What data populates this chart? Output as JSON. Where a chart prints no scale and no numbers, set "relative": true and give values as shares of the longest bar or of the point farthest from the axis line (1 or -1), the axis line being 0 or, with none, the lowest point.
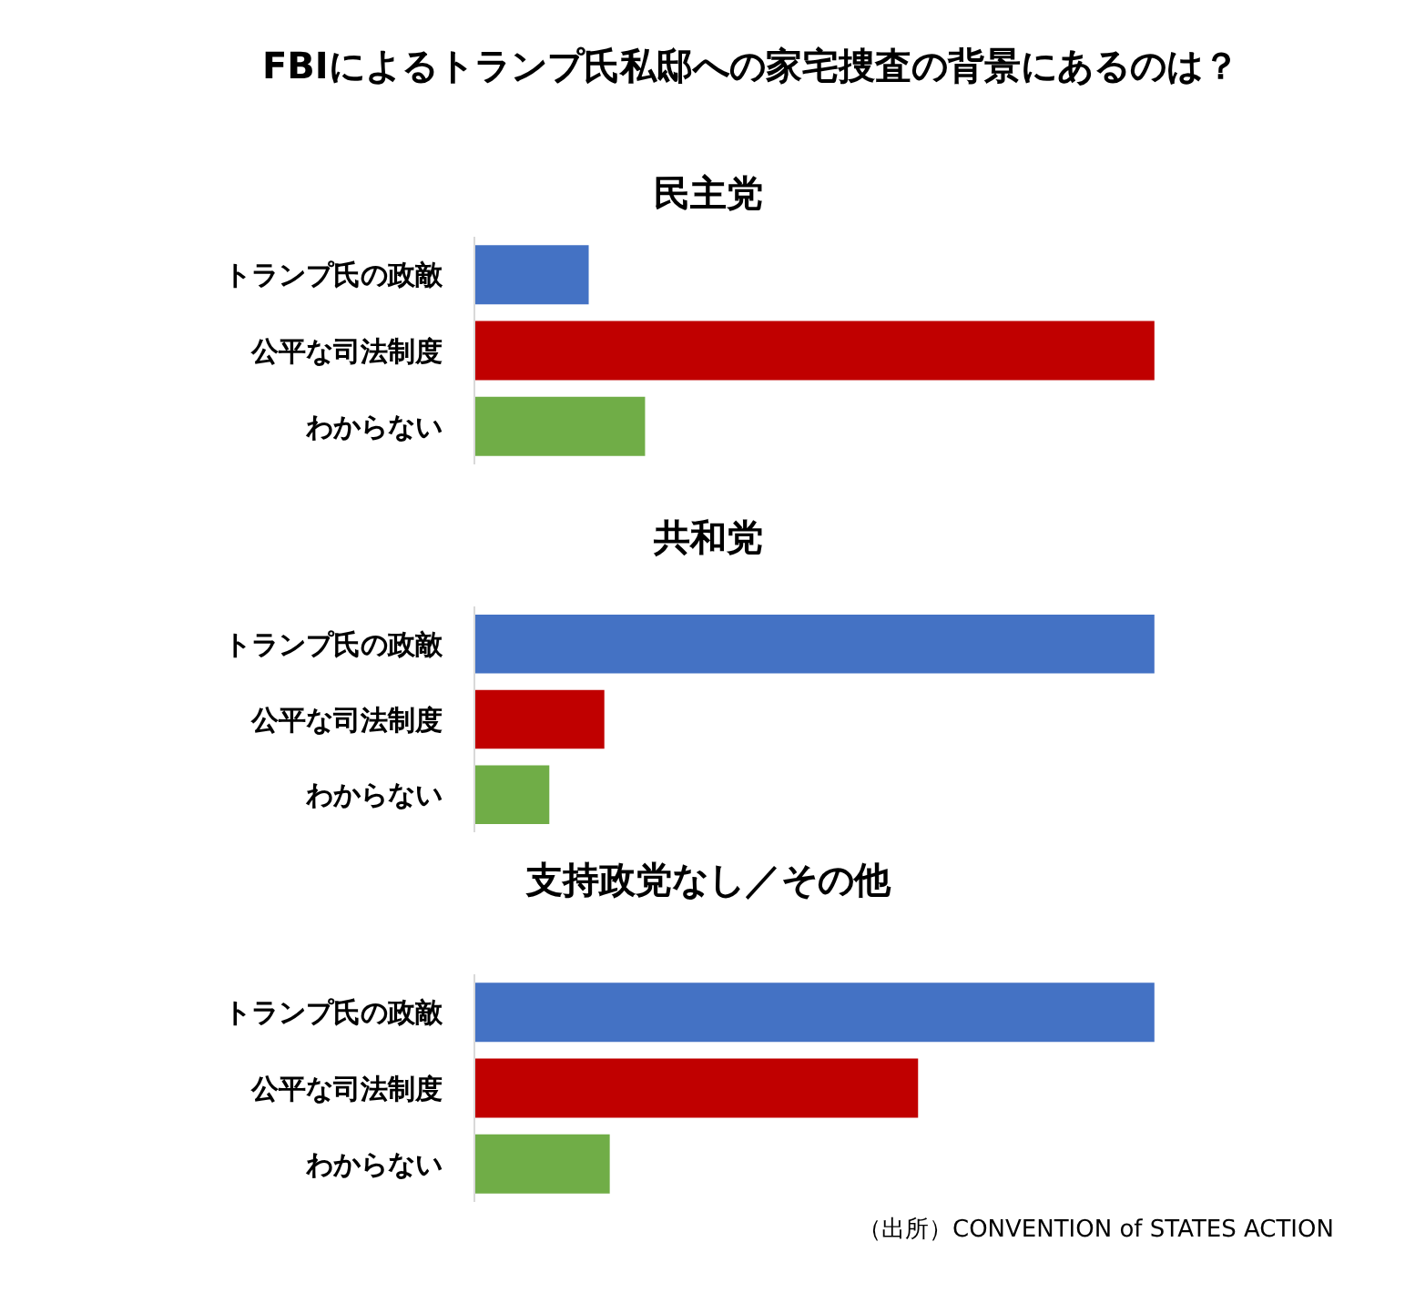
{
  "chart_data": [
    {
      "type": "bar",
      "orientation": "horizontal",
      "relative": true,
      "tick_labels": "y",
      "title": "FBIによるトランプ氏私邸への家宅捜査の背景にあるのは？",
      "subtitle": "民主党",
      "categories": [
        "トランプ氏の政敵",
        "公平な司法制度",
        "わからない"
      ],
      "values": [
        0.167,
        1,
        0.25
      ],
      "colors": [
        "#4472c4",
        "#c00000",
        "#70ad47"
      ]
    },
    {
      "type": "bar",
      "orientation": "horizontal",
      "relative": true,
      "tick_labels": "y",
      "subtitle": "共和党",
      "categories": [
        "トランプ氏の政敵",
        "公平な司法制度",
        "わからない"
      ],
      "values": [
        1,
        0.19,
        0.109
      ],
      "colors": [
        "#4472c4",
        "#c00000",
        "#70ad47"
      ]
    },
    {
      "type": "bar",
      "orientation": "horizontal",
      "relative": true,
      "tick_labels": "y",
      "subtitle": "支持政党なし／その他",
      "categories": [
        "トランプ氏の政敵",
        "公平な司法制度",
        "わからない"
      ],
      "values": [
        1,
        0.652,
        0.198
      ],
      "colors": [
        "#4472c4",
        "#c00000",
        "#70ad47"
      ],
      "annotations": [
        "（出所）CONVENTION of STATES ACTION"
      ]
    }
  ]
}
